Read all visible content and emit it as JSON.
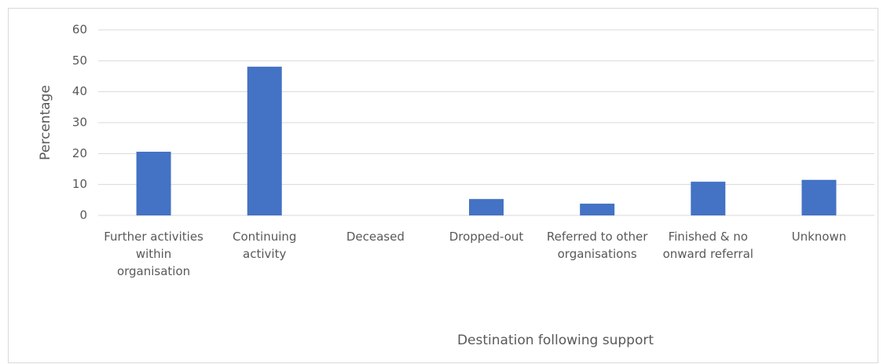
{
  "chart_data": {
    "type": "bar",
    "categories": [
      "Further activities within organisation",
      "Continuing activity",
      "Deceased",
      "Dropped-out",
      "Referred to other organisations",
      "Finished & no onward referral",
      "Unknown"
    ],
    "values": [
      20.6,
      48.1,
      0,
      5.3,
      3.8,
      10.9,
      11.5
    ],
    "color": "#4472c4",
    "y_label": "Percentage",
    "x_label": "Destination following support",
    "ylim": [
      0,
      60
    ],
    "yticks": [
      0,
      10,
      20,
      30,
      40,
      50,
      60
    ],
    "grid": true
  }
}
